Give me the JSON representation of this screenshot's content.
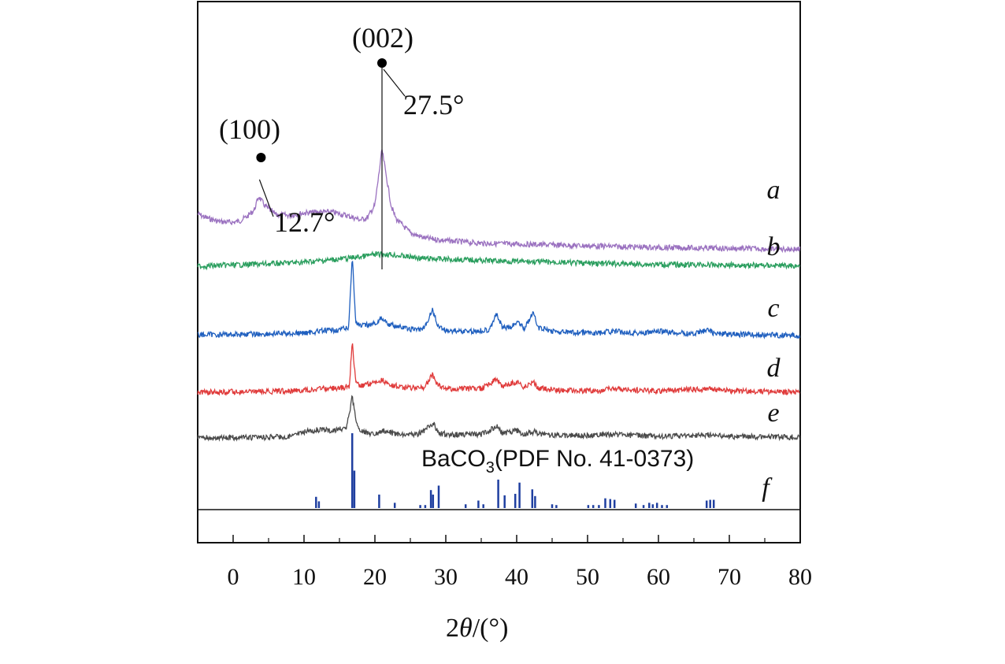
{
  "chart_data": {
    "type": "line",
    "xlabel_prefix": "2",
    "xlabel_symbol": "θ",
    "xlabel_suffix": "/(°)",
    "xlim": [
      -5,
      80
    ],
    "xticks": [
      0,
      10,
      20,
      30,
      40,
      50,
      60,
      70,
      80
    ],
    "series": [
      {
        "name": "a",
        "color": "#9b72c0",
        "baseline": 80,
        "points": [
          [
            -5,
            86
          ],
          [
            -4,
            82
          ],
          [
            -2,
            77
          ],
          [
            0,
            76
          ],
          [
            1,
            78
          ],
          [
            2,
            83
          ],
          [
            3,
            91
          ],
          [
            3.6,
            106
          ],
          [
            4.5,
            95
          ],
          [
            6,
            85
          ],
          [
            8,
            84
          ],
          [
            10,
            87
          ],
          [
            12,
            88
          ],
          [
            14,
            88
          ],
          [
            16,
            84
          ],
          [
            18,
            79
          ],
          [
            19,
            82
          ],
          [
            20,
            96
          ],
          [
            21,
            160
          ],
          [
            21.6,
            130
          ],
          [
            22.3,
            95
          ],
          [
            23,
            80
          ],
          [
            25,
            64
          ],
          [
            27,
            58
          ],
          [
            30,
            55
          ],
          [
            35,
            52
          ],
          [
            40,
            51
          ],
          [
            45,
            50
          ],
          [
            50,
            49
          ],
          [
            55,
            48
          ],
          [
            60,
            47
          ],
          [
            70,
            46
          ],
          [
            80,
            45
          ]
        ]
      },
      {
        "name": "b",
        "color": "#2a9e5e",
        "baseline": 40,
        "points": [
          [
            -5,
            40
          ],
          [
            0,
            42
          ],
          [
            5,
            44
          ],
          [
            10,
            47
          ],
          [
            15,
            52
          ],
          [
            18,
            56
          ],
          [
            20,
            60
          ],
          [
            22,
            60
          ],
          [
            24,
            57
          ],
          [
            27,
            53
          ],
          [
            30,
            52
          ],
          [
            35,
            50
          ],
          [
            40,
            48
          ],
          [
            45,
            47
          ],
          [
            50,
            45
          ],
          [
            55,
            44
          ],
          [
            60,
            43
          ],
          [
            70,
            42
          ],
          [
            80,
            41
          ]
        ]
      },
      {
        "name": "c",
        "color": "#1f5fbf",
        "baseline": 26,
        "points": [
          [
            -5,
            26
          ],
          [
            5,
            27
          ],
          [
            10,
            28
          ],
          [
            11.9,
            30
          ],
          [
            15,
            32
          ],
          [
            16.3,
            34
          ],
          [
            16.8,
            120
          ],
          [
            17.3,
            40
          ],
          [
            18,
            36
          ],
          [
            20,
            39
          ],
          [
            21,
            46
          ],
          [
            22,
            38
          ],
          [
            25,
            32
          ],
          [
            27,
            33
          ],
          [
            28.1,
            56
          ],
          [
            28.9,
            36
          ],
          [
            30,
            31
          ],
          [
            34,
            30
          ],
          [
            36,
            32
          ],
          [
            37.2,
            50
          ],
          [
            38,
            34
          ],
          [
            39,
            34
          ],
          [
            40.3,
            42
          ],
          [
            41,
            33
          ],
          [
            42.4,
            52
          ],
          [
            43,
            34
          ],
          [
            46,
            29
          ],
          [
            52,
            28
          ],
          [
            53,
            30
          ],
          [
            58,
            28
          ],
          [
            60,
            30
          ],
          [
            65,
            27
          ],
          [
            67,
            32
          ],
          [
            68,
            27
          ],
          [
            80,
            25
          ]
        ]
      },
      {
        "name": "d",
        "color": "#e03b3b",
        "baseline": 25,
        "points": [
          [
            -5,
            25
          ],
          [
            5,
            26
          ],
          [
            10,
            28
          ],
          [
            12,
            30
          ],
          [
            15,
            31
          ],
          [
            16.4,
            34
          ],
          [
            16.8,
            100
          ],
          [
            17.3,
            40
          ],
          [
            18,
            35
          ],
          [
            20,
            40
          ],
          [
            21,
            44
          ],
          [
            22,
            36
          ],
          [
            25,
            31
          ],
          [
            27,
            33
          ],
          [
            28.1,
            52
          ],
          [
            28.9,
            35
          ],
          [
            30,
            30
          ],
          [
            35,
            30
          ],
          [
            37.1,
            44
          ],
          [
            38,
            34
          ],
          [
            40.2,
            41
          ],
          [
            41,
            32
          ],
          [
            42.4,
            40
          ],
          [
            43,
            31
          ],
          [
            46,
            28
          ],
          [
            52,
            27
          ],
          [
            53,
            30
          ],
          [
            60,
            27
          ],
          [
            67,
            30
          ],
          [
            70,
            27
          ],
          [
            80,
            25
          ]
        ]
      },
      {
        "name": "e",
        "color": "#4a4a4a",
        "baseline": 25,
        "points": [
          [
            -5,
            25
          ],
          [
            5,
            26
          ],
          [
            8,
            27
          ],
          [
            10,
            33
          ],
          [
            12,
            36
          ],
          [
            14,
            35
          ],
          [
            16,
            38
          ],
          [
            16.8,
            80
          ],
          [
            17.5,
            40
          ],
          [
            18.5,
            32
          ],
          [
            20,
            31
          ],
          [
            21,
            35
          ],
          [
            23,
            30
          ],
          [
            26,
            29
          ],
          [
            28.3,
            44
          ],
          [
            29,
            31
          ],
          [
            32,
            29
          ],
          [
            35,
            30
          ],
          [
            37.2,
            40
          ],
          [
            38,
            31
          ],
          [
            40.1,
            35
          ],
          [
            41,
            30
          ],
          [
            42.5,
            33
          ],
          [
            44,
            29
          ],
          [
            50,
            28
          ],
          [
            53,
            30
          ],
          [
            60,
            27
          ],
          [
            67,
            29
          ],
          [
            70,
            27
          ],
          [
            80,
            26
          ]
        ]
      }
    ],
    "reference": {
      "name": "f",
      "title_main": "BaCO",
      "title_sub": "3",
      "title_rest": "(PDF No. 41-0373)",
      "color": "#1f3fa0",
      "peaks": [
        [
          11.7,
          15
        ],
        [
          12.1,
          9
        ],
        [
          16.8,
          100
        ],
        [
          17.1,
          50
        ],
        [
          20.6,
          18
        ],
        [
          22.8,
          7
        ],
        [
          26.4,
          4
        ],
        [
          27.1,
          4
        ],
        [
          27.9,
          24
        ],
        [
          28.2,
          18
        ],
        [
          29.0,
          30
        ],
        [
          32.8,
          5
        ],
        [
          34.6,
          10
        ],
        [
          35.3,
          5
        ],
        [
          37.4,
          38
        ],
        [
          38.3,
          17
        ],
        [
          39.8,
          19
        ],
        [
          40.4,
          34
        ],
        [
          42.2,
          25
        ],
        [
          42.6,
          16
        ],
        [
          45.0,
          5
        ],
        [
          45.6,
          4
        ],
        [
          50.1,
          4
        ],
        [
          50.8,
          4
        ],
        [
          51.6,
          4
        ],
        [
          52.5,
          13
        ],
        [
          53.2,
          12
        ],
        [
          53.8,
          11
        ],
        [
          56.8,
          6
        ],
        [
          57.9,
          4
        ],
        [
          58.7,
          7
        ],
        [
          59.2,
          5
        ],
        [
          59.8,
          7
        ],
        [
          60.5,
          4
        ],
        [
          61.2,
          4
        ],
        [
          66.8,
          10
        ],
        [
          67.3,
          11
        ],
        [
          67.8,
          11
        ]
      ]
    },
    "annotations": {
      "p100_label": "(100)",
      "p100_angle": "12.7°",
      "p100_x": 3.6,
      "p002_label": "(002)",
      "p002_angle": "27.5°",
      "p002_x": 21.0
    }
  }
}
